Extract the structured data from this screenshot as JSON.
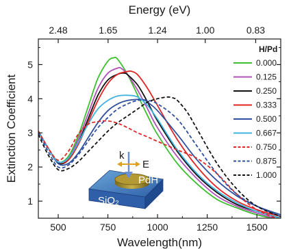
{
  "chart_data": {
    "type": "line",
    "title": "",
    "xlabel": "Wavelength(nm)",
    "ylabel": "Extinction Coefficient",
    "x2label": "Energy (eV)",
    "xlim": [
      400,
      1620
    ],
    "ylim": [
      0.5,
      5.75
    ],
    "x_ticks": [
      500,
      750,
      1000,
      1250,
      1500
    ],
    "y_ticks": [
      1,
      2,
      3,
      4,
      5
    ],
    "top_ticks": [
      {
        "label": "2.48",
        "wavelength": 500
      },
      {
        "label": "1.65",
        "wavelength": 751
      },
      {
        "label": "1.24",
        "wavelength": 1000
      },
      {
        "label": "1.00",
        "wavelength": 1240
      },
      {
        "label": "0.83",
        "wavelength": 1494
      }
    ],
    "grid": false,
    "legend": {
      "title": "H/Pd",
      "position": "right"
    },
    "series": [
      {
        "name": "0.000",
        "color": "#3cbf2e",
        "dash": "solid",
        "x": [
          400,
          450,
          500,
          550,
          600,
          650,
          700,
          750,
          780,
          800,
          850,
          900,
          950,
          1000,
          1100,
          1200,
          1300,
          1400,
          1500,
          1620
        ],
        "y": [
          3.05,
          2.55,
          2.15,
          2.3,
          2.9,
          3.75,
          4.6,
          5.1,
          5.2,
          5.15,
          4.7,
          4.1,
          3.5,
          2.95,
          2.1,
          1.5,
          1.05,
          0.8,
          0.6,
          0.45
        ]
      },
      {
        "name": "0.125",
        "color": "#b04fb8",
        "dash": "solid",
        "x": [
          400,
          450,
          500,
          550,
          600,
          650,
          700,
          750,
          800,
          820,
          850,
          900,
          950,
          1000,
          1100,
          1200,
          1300,
          1400,
          1500,
          1620
        ],
        "y": [
          3.05,
          2.55,
          2.15,
          2.25,
          2.8,
          3.55,
          4.3,
          4.75,
          4.9,
          4.88,
          4.7,
          4.25,
          3.7,
          3.15,
          2.3,
          1.65,
          1.15,
          0.85,
          0.65,
          0.45
        ]
      },
      {
        "name": "0.250",
        "color": "#111111",
        "dash": "solid",
        "x": [
          400,
          450,
          500,
          550,
          600,
          650,
          700,
          750,
          800,
          830,
          850,
          900,
          950,
          1000,
          1100,
          1200,
          1300,
          1400,
          1500,
          1620
        ],
        "y": [
          3.05,
          2.55,
          2.12,
          2.2,
          2.7,
          3.4,
          4.1,
          4.55,
          4.72,
          4.75,
          4.7,
          4.4,
          3.9,
          3.35,
          2.45,
          1.75,
          1.25,
          0.9,
          0.7,
          0.5
        ]
      },
      {
        "name": "0.333",
        "color": "#e02424",
        "dash": "solid",
        "x": [
          400,
          450,
          500,
          550,
          600,
          650,
          700,
          750,
          800,
          850,
          870,
          900,
          950,
          1000,
          1100,
          1200,
          1300,
          1400,
          1500,
          1620
        ],
        "y": [
          3.05,
          2.55,
          2.15,
          2.2,
          2.65,
          3.3,
          3.95,
          4.45,
          4.72,
          4.8,
          4.8,
          4.7,
          4.3,
          3.8,
          2.8,
          2.0,
          1.4,
          1.0,
          0.75,
          0.55
        ]
      },
      {
        "name": "0.500",
        "color": "#2f4f9e",
        "dash": "solid",
        "x": [
          400,
          450,
          500,
          550,
          600,
          650,
          700,
          750,
          800,
          850,
          900,
          930,
          950,
          1000,
          1100,
          1200,
          1300,
          1400,
          1500,
          1620
        ],
        "y": [
          3.05,
          2.55,
          2.1,
          2.1,
          2.4,
          2.85,
          3.3,
          3.65,
          3.85,
          3.95,
          3.98,
          3.97,
          3.9,
          3.65,
          2.95,
          2.2,
          1.6,
          1.15,
          0.85,
          0.6
        ]
      },
      {
        "name": "0.667",
        "color": "#3fb3e0",
        "dash": "solid",
        "x": [
          400,
          450,
          500,
          550,
          600,
          650,
          700,
          750,
          800,
          850,
          900,
          950,
          1000,
          1100,
          1200,
          1300,
          1400,
          1500,
          1620
        ],
        "y": [
          3.05,
          2.55,
          2.15,
          2.25,
          2.7,
          3.25,
          3.7,
          3.95,
          4.08,
          4.1,
          4.05,
          3.8,
          3.4,
          2.5,
          1.8,
          1.3,
          0.95,
          0.7,
          0.5
        ]
      },
      {
        "name": "0.750",
        "color": "#e02424",
        "dash": "dashed",
        "x": [
          400,
          450,
          500,
          550,
          600,
          650,
          700,
          750,
          800,
          850,
          900,
          950,
          1000,
          1100,
          1200,
          1300,
          1400,
          1500,
          1620
        ],
        "y": [
          3.05,
          2.55,
          2.2,
          2.45,
          2.95,
          3.25,
          3.33,
          3.35,
          3.28,
          3.15,
          3.0,
          2.88,
          2.75,
          2.5,
          2.25,
          1.8,
          1.2,
          0.75,
          0.45
        ]
      },
      {
        "name": "0.875",
        "color": "#2f4f9e",
        "dash": "dashed",
        "x": [
          400,
          450,
          500,
          550,
          600,
          650,
          700,
          750,
          800,
          850,
          900,
          950,
          1000,
          1100,
          1200,
          1300,
          1400,
          1500,
          1620
        ],
        "y": [
          3.0,
          2.45,
          2.0,
          2.05,
          2.35,
          2.75,
          3.15,
          3.45,
          3.7,
          3.85,
          3.95,
          3.95,
          3.85,
          3.4,
          2.6,
          1.8,
          1.2,
          0.85,
          0.55
        ]
      },
      {
        "name": "1.000",
        "color": "#111111",
        "dash": "dashed",
        "x": [
          400,
          450,
          500,
          550,
          600,
          650,
          700,
          750,
          800,
          850,
          900,
          950,
          1000,
          1050,
          1080,
          1100,
          1150,
          1200,
          1300,
          1400,
          1500,
          1620
        ],
        "y": [
          2.95,
          2.35,
          1.92,
          1.95,
          2.15,
          2.45,
          2.75,
          3.05,
          3.3,
          3.5,
          3.7,
          3.9,
          4.0,
          4.05,
          4.02,
          3.95,
          3.6,
          3.1,
          2.1,
          1.35,
          0.85,
          0.55
        ]
      }
    ],
    "inset": {
      "labels": {
        "k": "k",
        "e": "E",
        "particle": "PdH",
        "substrate": "SiO₂"
      }
    }
  }
}
